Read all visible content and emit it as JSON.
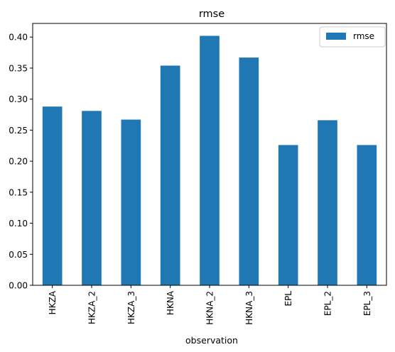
{
  "chart_data": {
    "type": "bar",
    "title": "rmse",
    "xlabel": "observation",
    "ylabel": "",
    "categories": [
      "HKZA",
      "HKZA_2",
      "HKZA_3",
      "HKNA",
      "HKNA_2",
      "HKNA_3",
      "EPL",
      "EPL_2",
      "EPL_3"
    ],
    "series": [
      {
        "name": "rmse",
        "color": "#1f77b4",
        "values": [
          0.288,
          0.281,
          0.267,
          0.354,
          0.402,
          0.367,
          0.226,
          0.266,
          0.226
        ]
      }
    ],
    "ylim": [
      0,
      0.422
    ],
    "yticks": [
      0.0,
      0.05,
      0.1,
      0.15,
      0.2,
      0.25,
      0.3,
      0.35,
      0.4
    ],
    "ytick_labels": [
      "0.00",
      "0.05",
      "0.10",
      "0.15",
      "0.20",
      "0.25",
      "0.30",
      "0.35",
      "0.40"
    ],
    "grid": false,
    "legend_position": "top-right"
  }
}
